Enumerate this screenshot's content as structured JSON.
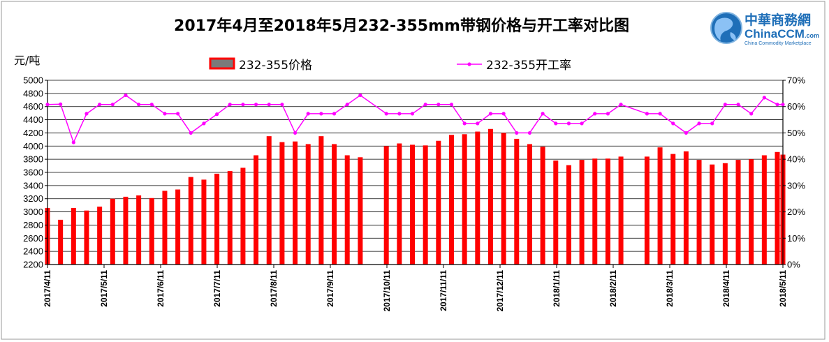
{
  "chart_data": {
    "type": "bar",
    "title": "2017年4月至2018年5月232-355mm带钢价格与开工率对比图",
    "y_left_unit": "元/吨",
    "y_left_lim": [
      2200,
      5000
    ],
    "y_left_ticks": [
      "2200",
      "2400",
      "2600",
      "2800",
      "3000",
      "3200",
      "3400",
      "3600",
      "3800",
      "4000",
      "4200",
      "4400",
      "4600",
      "4800",
      "5000"
    ],
    "y_right_lim": [
      0,
      70
    ],
    "y_right_ticks": [
      "0%",
      "10%",
      "20%",
      "30%",
      "40%",
      "50%",
      "60%",
      "70%"
    ],
    "x_tick_labels": [
      "2017/4/11",
      "2017/5/11",
      "2017/6/11",
      "2017/7/11",
      "2017/8/11",
      "2017/9/11",
      "2017/10/11",
      "2017/11/11",
      "2017/12/11",
      "2018/1/11",
      "2018/2/11",
      "2018/3/11",
      "2018/4/11",
      "2018/5/11"
    ],
    "x_start": "2017-04-11",
    "x_end": "2018-05-11",
    "legend_position": "top",
    "series": [
      {
        "name": "232-355价格",
        "kind": "bar",
        "axis": "left",
        "color": "#ff0000",
        "points": [
          [
            "2017-04-11",
            3060
          ],
          [
            "2017-04-18",
            2880
          ],
          [
            "2017-04-25",
            3060
          ],
          [
            "2017-05-02",
            3020
          ],
          [
            "2017-05-09",
            3080
          ],
          [
            "2017-05-16",
            3200
          ],
          [
            "2017-05-23",
            3230
          ],
          [
            "2017-05-30",
            3250
          ],
          [
            "2017-06-06",
            3210
          ],
          [
            "2017-06-13",
            3320
          ],
          [
            "2017-06-20",
            3340
          ],
          [
            "2017-06-27",
            3530
          ],
          [
            "2017-07-04",
            3490
          ],
          [
            "2017-07-11",
            3580
          ],
          [
            "2017-07-18",
            3620
          ],
          [
            "2017-07-25",
            3670
          ],
          [
            "2017-08-01",
            3860
          ],
          [
            "2017-08-08",
            4150
          ],
          [
            "2017-08-15",
            4060
          ],
          [
            "2017-08-22",
            4070
          ],
          [
            "2017-08-29",
            4030
          ],
          [
            "2017-09-05",
            4150
          ],
          [
            "2017-09-12",
            4030
          ],
          [
            "2017-09-19",
            3860
          ],
          [
            "2017-09-26",
            3830
          ],
          [
            "2017-10-10",
            4000
          ],
          [
            "2017-10-17",
            4040
          ],
          [
            "2017-10-24",
            4020
          ],
          [
            "2017-10-31",
            4010
          ],
          [
            "2017-11-07",
            4080
          ],
          [
            "2017-11-14",
            4170
          ],
          [
            "2017-11-21",
            4180
          ],
          [
            "2017-11-28",
            4220
          ],
          [
            "2017-12-05",
            4260
          ],
          [
            "2017-12-12",
            4200
          ],
          [
            "2017-12-19",
            4110
          ],
          [
            "2017-12-26",
            4030
          ],
          [
            "2018-01-02",
            3990
          ],
          [
            "2018-01-09",
            3780
          ],
          [
            "2018-01-16",
            3710
          ],
          [
            "2018-01-23",
            3790
          ],
          [
            "2018-01-30",
            3810
          ],
          [
            "2018-02-06",
            3810
          ],
          [
            "2018-02-13",
            3840
          ],
          [
            "2018-02-27",
            3840
          ],
          [
            "2018-03-06",
            3980
          ],
          [
            "2018-03-13",
            3880
          ],
          [
            "2018-03-20",
            3920
          ],
          [
            "2018-03-27",
            3790
          ],
          [
            "2018-04-03",
            3720
          ],
          [
            "2018-04-10",
            3740
          ],
          [
            "2018-04-17",
            3790
          ],
          [
            "2018-04-24",
            3800
          ],
          [
            "2018-05-01",
            3860
          ],
          [
            "2018-05-08",
            3910
          ],
          [
            "2018-05-11",
            3870
          ]
        ]
      },
      {
        "name": "232-355开工率",
        "kind": "line",
        "axis": "right",
        "color": "#ff00ff",
        "points": [
          [
            "2017-04-11",
            60.8
          ],
          [
            "2017-04-18",
            60.9
          ],
          [
            "2017-04-25",
            46.4
          ],
          [
            "2017-05-02",
            57.3
          ],
          [
            "2017-05-09",
            60.8
          ],
          [
            "2017-05-16",
            60.8
          ],
          [
            "2017-05-23",
            64.3
          ],
          [
            "2017-05-30",
            60.8
          ],
          [
            "2017-06-06",
            60.8
          ],
          [
            "2017-06-13",
            57.3
          ],
          [
            "2017-06-20",
            57.3
          ],
          [
            "2017-06-27",
            50.0
          ],
          [
            "2017-07-04",
            53.6
          ],
          [
            "2017-07-11",
            57.1
          ],
          [
            "2017-07-18",
            60.8
          ],
          [
            "2017-07-25",
            60.8
          ],
          [
            "2017-08-01",
            60.8
          ],
          [
            "2017-08-08",
            60.8
          ],
          [
            "2017-08-15",
            60.8
          ],
          [
            "2017-08-22",
            50.0
          ],
          [
            "2017-08-29",
            57.3
          ],
          [
            "2017-09-05",
            57.3
          ],
          [
            "2017-09-12",
            57.3
          ],
          [
            "2017-09-19",
            60.8
          ],
          [
            "2017-09-26",
            64.3
          ],
          [
            "2017-10-10",
            57.3
          ],
          [
            "2017-10-17",
            57.3
          ],
          [
            "2017-10-24",
            57.3
          ],
          [
            "2017-10-31",
            60.8
          ],
          [
            "2017-11-07",
            60.8
          ],
          [
            "2017-11-14",
            60.8
          ],
          [
            "2017-11-21",
            53.6
          ],
          [
            "2017-11-28",
            53.6
          ],
          [
            "2017-12-05",
            57.3
          ],
          [
            "2017-12-12",
            57.3
          ],
          [
            "2017-12-19",
            50.0
          ],
          [
            "2017-12-26",
            50.0
          ],
          [
            "2018-01-02",
            57.3
          ],
          [
            "2018-01-09",
            53.6
          ],
          [
            "2018-01-16",
            53.6
          ],
          [
            "2018-01-23",
            53.6
          ],
          [
            "2018-01-30",
            57.3
          ],
          [
            "2018-02-06",
            57.3
          ],
          [
            "2018-02-13",
            60.8
          ],
          [
            "2018-02-27",
            57.3
          ],
          [
            "2018-03-06",
            57.3
          ],
          [
            "2018-03-13",
            53.6
          ],
          [
            "2018-03-20",
            50.0
          ],
          [
            "2018-03-27",
            53.6
          ],
          [
            "2018-04-03",
            53.6
          ],
          [
            "2018-04-10",
            60.8
          ],
          [
            "2018-04-17",
            60.8
          ],
          [
            "2018-04-24",
            57.3
          ],
          [
            "2018-05-01",
            63.4
          ],
          [
            "2018-05-08",
            60.8
          ],
          [
            "2018-05-11",
            60.8
          ]
        ]
      }
    ]
  },
  "logo": {
    "name_cn": "中華商務網",
    "name_en": "ChinaCCM",
    "domain_suffix": ".com",
    "tagline": "China Commodity Marketplace"
  },
  "colors": {
    "bar": "#ff0000",
    "bar_legend_fill": "#7a7a7a",
    "line": "#ff00ff",
    "gridline": "#000000",
    "logo_blue": "#1f6fb8"
  }
}
